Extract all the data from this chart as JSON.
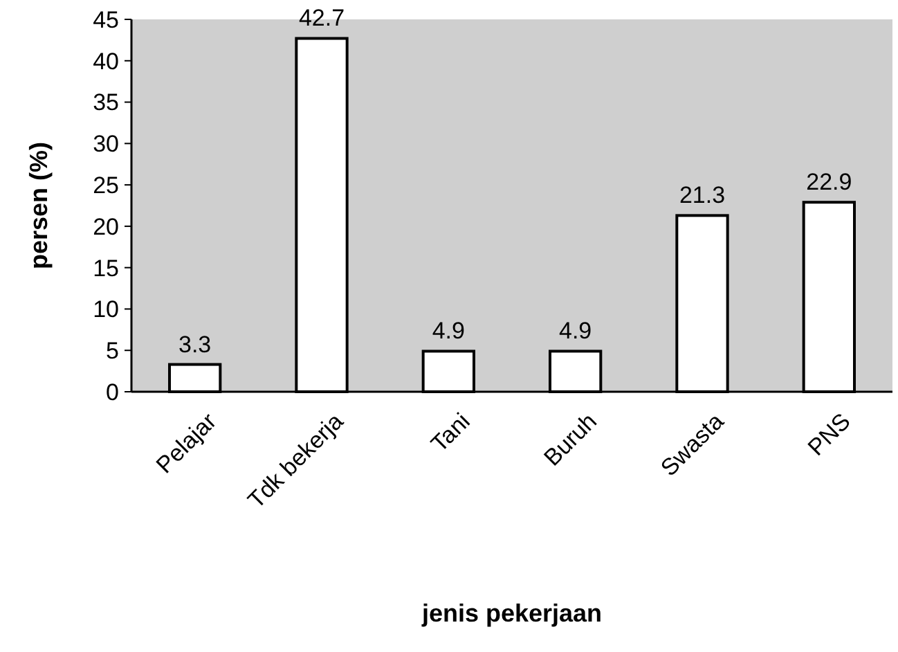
{
  "chart_data": {
    "type": "bar",
    "xlabel": "jenis pekerjaan",
    "ylabel": "persen (%)",
    "categories": [
      "Pelajar",
      "Tdk bekerja",
      "Tani",
      "Buruh",
      "Swasta",
      "PNS"
    ],
    "values": [
      3.3,
      42.7,
      4.9,
      4.9,
      21.3,
      22.9
    ],
    "color": "#ffffff",
    "ylim": [
      0,
      45
    ],
    "yticks": [
      0,
      5,
      10,
      15,
      20,
      25,
      30,
      35,
      40,
      45
    ],
    "data_labels": true,
    "grid": false
  }
}
